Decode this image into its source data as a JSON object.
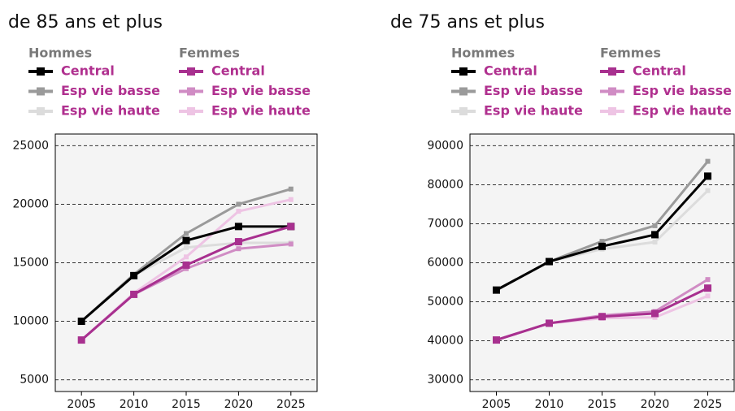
{
  "chart_data": [
    {
      "type": "line",
      "title": "de 85 ans et plus",
      "x": [
        2005,
        2010,
        2015,
        2020,
        2025
      ],
      "xlim": [
        2002.5,
        2027.5
      ],
      "xticks": [
        2005,
        2010,
        2015,
        2020,
        2025
      ],
      "ylim": [
        4000,
        26000
      ],
      "yticks": [
        5000,
        10000,
        15000,
        20000,
        25000
      ],
      "grid": true,
      "groups": [
        {
          "name": "Hommes",
          "series": [
            {
              "name": "Central",
              "color": "#000000",
              "values": [
                10000,
                13900,
                16900,
                18100,
                18100
              ]
            },
            {
              "name": "Esp vie basse",
              "color": "#9a9a9a",
              "values": [
                10000,
                14000,
                17500,
                20000,
                21300
              ]
            },
            {
              "name": "Esp vie haute",
              "color": "#dcdcdc",
              "values": [
                10000,
                13900,
                16300,
                16700,
                16700
              ]
            }
          ]
        },
        {
          "name": "Femmes",
          "series": [
            {
              "name": "Central",
              "color": "#a8308f",
              "values": [
                8400,
                12300,
                14800,
                16800,
                18100
              ]
            },
            {
              "name": "Esp vie basse",
              "color": "#d08cc4",
              "values": [
                8400,
                12300,
                14500,
                16200,
                16600
              ]
            },
            {
              "name": "Esp vie haute",
              "color": "#eec4e4",
              "values": [
                8400,
                12400,
                15500,
                19400,
                20400
              ]
            }
          ]
        }
      ]
    },
    {
      "type": "line",
      "title": "de 75 ans et plus",
      "x": [
        2005,
        2010,
        2015,
        2020,
        2025
      ],
      "xlim": [
        2002.5,
        2027.5
      ],
      "xticks": [
        2005,
        2010,
        2015,
        2020,
        2025
      ],
      "ylim": [
        27000,
        93000
      ],
      "yticks": [
        30000,
        40000,
        50000,
        60000,
        70000,
        80000,
        90000
      ],
      "grid": true,
      "groups": [
        {
          "name": "Hommes",
          "series": [
            {
              "name": "Central",
              "color": "#000000",
              "values": [
                53000,
                60300,
                64200,
                67200,
                82200
              ]
            },
            {
              "name": "Esp vie basse",
              "color": "#9a9a9a",
              "values": [
                53000,
                60300,
                65500,
                69500,
                86000
              ]
            },
            {
              "name": "Esp vie haute",
              "color": "#dcdcdc",
              "values": [
                53000,
                60300,
                63500,
                65300,
                78500
              ]
            }
          ]
        },
        {
          "name": "Femmes",
          "series": [
            {
              "name": "Central",
              "color": "#a8308f",
              "values": [
                40200,
                44500,
                46200,
                47000,
                53500
              ]
            },
            {
              "name": "Esp vie basse",
              "color": "#d08cc4",
              "values": [
                40200,
                44500,
                46500,
                47500,
                55700
              ]
            },
            {
              "name": "Esp vie haute",
              "color": "#eec4e4",
              "values": [
                40200,
                44500,
                45800,
                46000,
                51500
              ]
            }
          ]
        }
      ]
    }
  ]
}
